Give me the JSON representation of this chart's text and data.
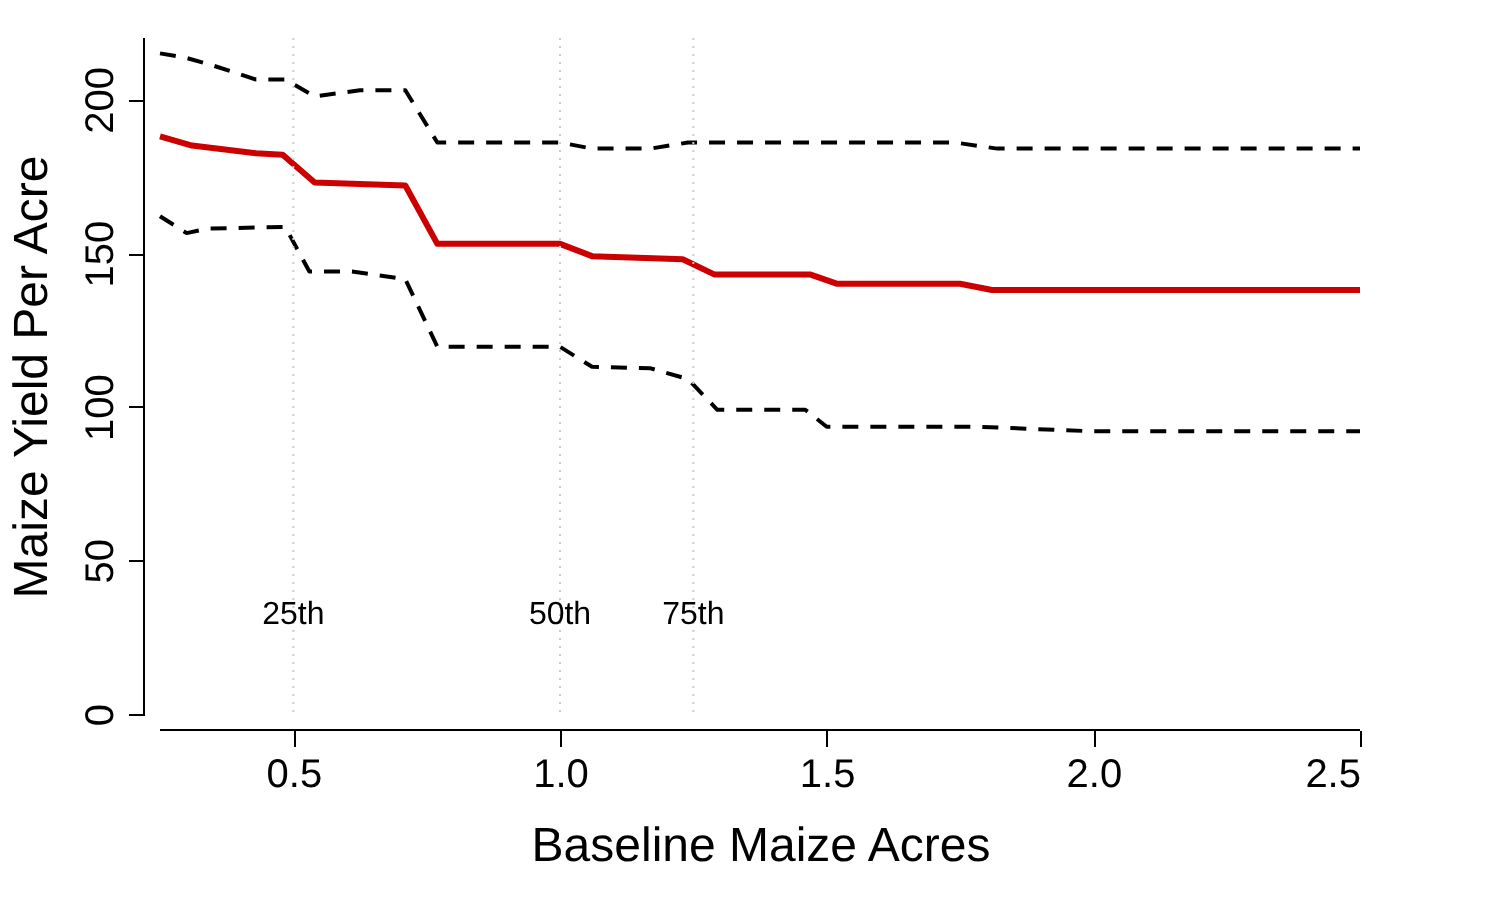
{
  "chart_data": {
    "type": "line",
    "xlabel": "Baseline Maize Acres",
    "ylabel": "Maize Yield Per Acre",
    "xlim": [
      0.25,
      2.5
    ],
    "ylim": [
      0,
      220
    ],
    "xticks": [
      0.5,
      {
        "value": 1,
        "label": "1.0"
      },
      1.5,
      {
        "value": 2,
        "label": "2.0"
      },
      2.5
    ],
    "yticks": [
      0,
      50,
      100,
      150,
      200
    ],
    "grid": false,
    "marker": "none",
    "series": [
      {
        "color": "#cc0000",
        "line_style": "solid",
        "x": [
          0.25,
          0.31,
          0.43,
          0.48,
          0.54,
          0.71,
          0.77,
          1.0,
          1.06,
          1.23,
          1.29,
          1.47,
          1.52,
          1.75,
          1.81,
          2.5
        ],
        "values": [
          188,
          185,
          182.5,
          182,
          173,
          172,
          153,
          153,
          149,
          148,
          143,
          143,
          140,
          140,
          138,
          138
        ]
      },
      {
        "color": "#000000",
        "line_style": "dashed",
        "x": [
          0.25,
          0.3,
          0.35,
          0.43,
          0.485,
          0.54,
          0.625,
          0.71,
          0.77,
          1.0,
          1.06,
          1.17,
          1.24,
          1.515,
          1.74,
          1.82,
          2.0,
          2.5
        ],
        "values": [
          215,
          213.5,
          211,
          206.5,
          206.5,
          201,
          203,
          203,
          186,
          186,
          184,
          184,
          186,
          186,
          186,
          184,
          184,
          184
        ]
      },
      {
        "color": "#000000",
        "line_style": "dashed",
        "x": [
          0.25,
          0.3,
          0.34,
          0.485,
          0.53,
          0.61,
          0.71,
          0.77,
          1.0,
          1.06,
          1.17,
          1.24,
          1.295,
          1.46,
          1.5,
          1.78,
          2.0,
          2.5
        ],
        "values": [
          162,
          156.5,
          158,
          158.5,
          144,
          144,
          141.5,
          119.5,
          119.5,
          113,
          112.5,
          109,
          99,
          99,
          93.5,
          93.5,
          92,
          92
        ]
      }
    ],
    "ref_lines": [
      {
        "axis": "x",
        "value": 0.5,
        "label": "25th",
        "color": "#cccccc",
        "line_style": "dotted"
      },
      {
        "axis": "x",
        "value": 1.0,
        "label": "50th",
        "color": "#cccccc",
        "line_style": "dotted"
      },
      {
        "axis": "x",
        "value": 1.25,
        "label": "75th",
        "color": "#cccccc",
        "line_style": "dotted"
      }
    ]
  }
}
